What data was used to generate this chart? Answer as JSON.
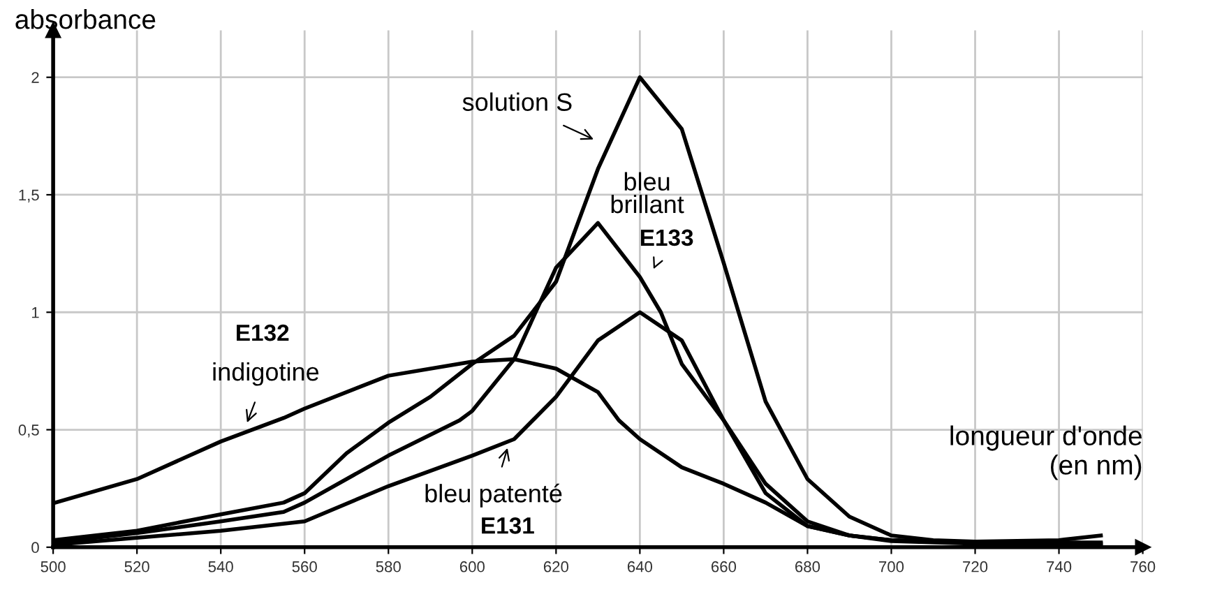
{
  "chart_data": {
    "type": "line",
    "xlabel": "longueur d'onde\n(en nm)",
    "ylabel": "absorbance",
    "xlim": [
      500,
      760
    ],
    "xticks": [
      500,
      520,
      540,
      560,
      580,
      600,
      620,
      640,
      660,
      680,
      700,
      720,
      740,
      760
    ],
    "ylim": [
      0,
      2.2
    ],
    "yticks": [
      0,
      {
        "value": 0.5,
        "label": "0,5"
      },
      1,
      {
        "value": 1.5,
        "label": "1,5"
      },
      2
    ],
    "grid": true,
    "marker": "none",
    "line_style": "solid",
    "series": [
      {
        "color": "#000000",
        "x": [
          500,
          520,
          540,
          555,
          560,
          570,
          580,
          590,
          600,
          610,
          620,
          630,
          640,
          650,
          660,
          670,
          680,
          690,
          700,
          710,
          720,
          740,
          750
        ],
        "values": [
          0.03,
          0.07,
          0.14,
          0.19,
          0.23,
          0.4,
          0.53,
          0.64,
          0.78,
          0.9,
          1.13,
          1.61,
          2.0,
          1.78,
          1.21,
          0.62,
          0.29,
          0.13,
          0.05,
          0.03,
          0.024,
          0.03,
          0.05
        ]
      },
      {
        "color": "#000000",
        "x": [
          500,
          520,
          540,
          555,
          560,
          580,
          597,
          600,
          610,
          620,
          630,
          640,
          645,
          650,
          660,
          670,
          680,
          690,
          700,
          720,
          750
        ],
        "values": [
          0.02,
          0.06,
          0.11,
          0.15,
          0.19,
          0.39,
          0.54,
          0.58,
          0.8,
          1.19,
          1.38,
          1.15,
          1.0,
          0.78,
          0.54,
          0.23,
          0.09,
          0.05,
          0.026,
          0.015,
          0.006
        ]
      },
      {
        "color": "#000000",
        "x": [
          500,
          520,
          540,
          555,
          560,
          580,
          600,
          610,
          620,
          630,
          635,
          640,
          650,
          660,
          670,
          680,
          690,
          700,
          720,
          750
        ],
        "values": [
          0.187,
          0.29,
          0.45,
          0.55,
          0.59,
          0.73,
          0.79,
          0.8,
          0.76,
          0.66,
          0.54,
          0.46,
          0.34,
          0.27,
          0.19,
          0.09,
          0.05,
          0.03,
          0.02,
          0.014
        ]
      },
      {
        "color": "#000000",
        "x": [
          500,
          520,
          540,
          560,
          580,
          600,
          610,
          615,
          620,
          630,
          640,
          650,
          660,
          670,
          680,
          690,
          700,
          720,
          750
        ],
        "values": [
          0.01,
          0.04,
          0.07,
          0.11,
          0.26,
          0.39,
          0.46,
          0.55,
          0.64,
          0.88,
          1.0,
          0.88,
          0.54,
          0.27,
          0.11,
          0.05,
          0.03,
          0.02,
          0.02
        ]
      }
    ],
    "annotations": [
      "solution S",
      "bleu\nbrillant",
      "E133",
      "indigotine",
      "E132",
      "bleu patenté",
      "E131"
    ]
  }
}
